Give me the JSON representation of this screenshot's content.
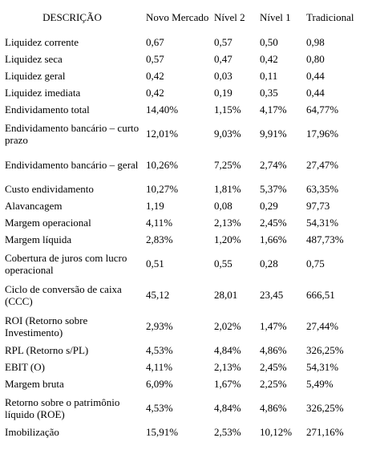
{
  "table": {
    "headers": [
      "DESCRIÇÃO",
      "Novo Mercado",
      "Nível 2",
      "Nível 1",
      "Tradicional"
    ],
    "rows": [
      {
        "label": "Liquidez corrente",
        "values": [
          "0,67",
          "0,57",
          "0,50",
          "0,98"
        ]
      },
      {
        "label": "Liquidez seca",
        "values": [
          "0,57",
          "0,47",
          "0,42",
          "0,80"
        ]
      },
      {
        "label": "Liquidez geral",
        "values": [
          "0,42",
          "0,03",
          "0,11",
          "0,44"
        ]
      },
      {
        "label": "Liquidez imediata",
        "values": [
          "0,42",
          "0,19",
          "0,35",
          "0,44"
        ]
      },
      {
        "label": "Endividamento total",
        "values": [
          "14,40%",
          "1,15%",
          "4,17%",
          "64,77%"
        ]
      },
      {
        "label": "Endividamento bancário – curto prazo",
        "values": [
          "12,01%",
          "9,03%",
          "9,91%",
          "17,96%"
        ]
      },
      {
        "label": "Endividamento bancário – geral",
        "values": [
          "10,26%",
          "7,25%",
          "2,74%",
          "27,47%"
        ]
      },
      {
        "label": "Custo endividamento",
        "values": [
          "10,27%",
          "1,81%",
          "5,37%",
          "63,35%"
        ]
      },
      {
        "label": "Alavancagem",
        "values": [
          "1,19",
          "0,08",
          "0,29",
          "97,73"
        ]
      },
      {
        "label": "Margem operacional",
        "values": [
          "4,11%",
          "2,13%",
          "2,45%",
          "54,31%"
        ]
      },
      {
        "label": "Margem líquida",
        "values": [
          "2,83%",
          "1,20%",
          "1,66%",
          "487,73%"
        ]
      },
      {
        "label": "Cobertura de juros com lucro operacional",
        "values": [
          "0,51",
          "0,55",
          "0,28",
          "0,75"
        ]
      },
      {
        "label": "Ciclo de conversão de caixa (CCC)",
        "values": [
          "45,12",
          "28,01",
          "23,45",
          "666,51"
        ]
      },
      {
        "label": "ROI (Retorno sobre Investimento)",
        "values": [
          "2,93%",
          "2,02%",
          "1,47%",
          "27,44%"
        ]
      },
      {
        "label": "RPL (Retorno s/PL)",
        "values": [
          "4,53%",
          "4,84%",
          "4,86%",
          "326,25%"
        ]
      },
      {
        "label": "EBIT (O)",
        "values": [
          "4,11%",
          "2,13%",
          "2,45%",
          "54,31%"
        ]
      },
      {
        "label": "Margem bruta",
        "values": [
          "6,09%",
          "1,67%",
          "2,25%",
          "5,49%"
        ]
      },
      {
        "label": "Retorno sobre o patrimônio líquido (ROE)",
        "values": [
          "4,53%",
          "4,84%",
          "4,86%",
          "326,25%"
        ]
      },
      {
        "label": "Imobilização",
        "values": [
          "15,91%",
          "2,53%",
          "10,12%",
          "271,16%"
        ]
      }
    ]
  }
}
